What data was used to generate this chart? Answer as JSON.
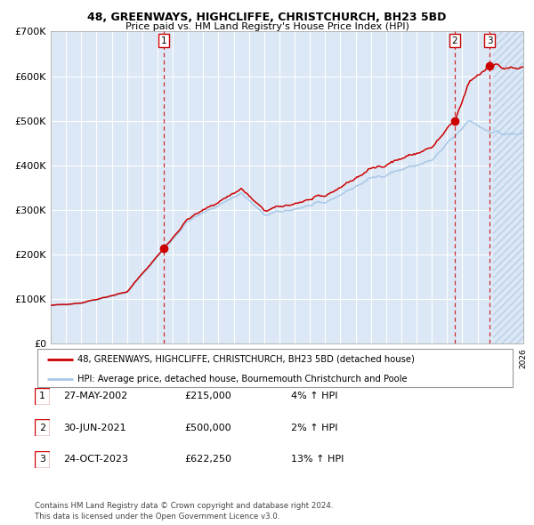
{
  "title1": "48, GREENWAYS, HIGHCLIFFE, CHRISTCHURCH, BH23 5BD",
  "title2": "Price paid vs. HM Land Registry's House Price Index (HPI)",
  "ylim": [
    0,
    700000
  ],
  "yticks": [
    0,
    100000,
    200000,
    300000,
    400000,
    500000,
    600000,
    700000
  ],
  "ytick_labels": [
    "£0",
    "£100K",
    "£200K",
    "£300K",
    "£400K",
    "£500K",
    "£600K",
    "£700K"
  ],
  "x_start_year": 1995,
  "x_end_year": 2026,
  "hpi_color": "#a8c8e8",
  "price_color": "#cc0000",
  "bg_color": "#dce8f5",
  "sale1_date": 2002.41,
  "sale1_price": 215000,
  "sale2_date": 2021.5,
  "sale2_price": 500000,
  "sale3_date": 2023.8,
  "sale3_price": 622250,
  "legend_line1": "48, GREENWAYS, HIGHCLIFFE, CHRISTCHURCH, BH23 5BD (detached house)",
  "legend_line2": "HPI: Average price, detached house, Bournemouth Christchurch and Poole",
  "table_data": [
    [
      "1",
      "27-MAY-2002",
      "£215,000",
      "4% ↑ HPI"
    ],
    [
      "2",
      "30-JUN-2021",
      "£500,000",
      "2% ↑ HPI"
    ],
    [
      "3",
      "24-OCT-2023",
      "£622,250",
      "13% ↑ HPI"
    ]
  ],
  "footnote": "Contains HM Land Registry data © Crown copyright and database right 2024.\nThis data is licensed under the Open Government Licence v3.0."
}
